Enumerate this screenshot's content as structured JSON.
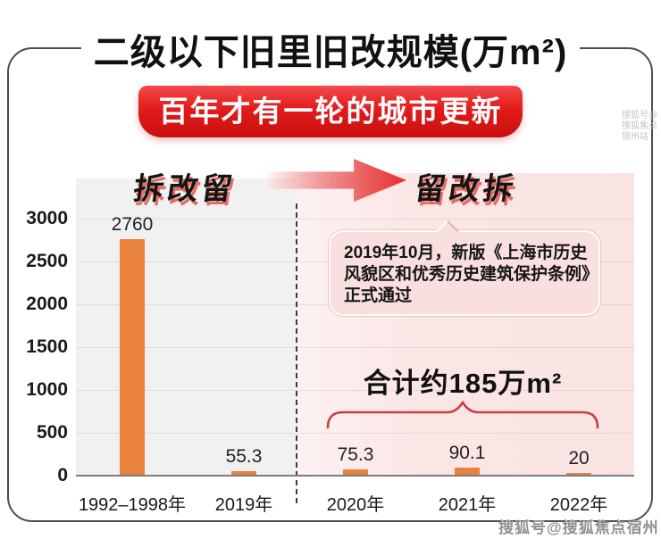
{
  "title": "二级以下旧里旧改规模(万m²)",
  "banner": {
    "text": "百年才有一轮的城市更新"
  },
  "eras": {
    "left": "拆改留",
    "right": "留改拆"
  },
  "annotation": {
    "lines": [
      "2019年10月，新版《上海市历史",
      "风貌区和优秀历史建筑保护条例》",
      "正式通过"
    ],
    "full_text": "2019年10月，新版《上海市历史风貌区和优秀历史建筑保护条例》正式通过"
  },
  "total": {
    "text": "合计约185万m²"
  },
  "watermark": {
    "text": "搜狐号@搜狐焦点宿州站"
  },
  "colors": {
    "bar": "#E9823D",
    "banner_red": "#E21B1B",
    "accent_red": "#C94040",
    "plot_gray": "#F1F1F1",
    "plot_pink": "#FBE6E6"
  },
  "chart_data": {
    "type": "bar",
    "title": "二级以下旧里旧改规模(万m²)",
    "subtitle": "百年才有一轮的城市更新",
    "categories": [
      "1992–1998年",
      "2019年",
      "2020年",
      "2021年",
      "2022年"
    ],
    "values": [
      2760,
      55.3,
      75.3,
      90.1,
      20
    ],
    "value_labels": [
      "2760",
      "55.3",
      "75.3",
      "90.1",
      "20"
    ],
    "xlabel": "",
    "ylabel": "万m²",
    "ylim": [
      0,
      3000
    ],
    "yticks": [
      0,
      500,
      1000,
      1500,
      2000,
      2500,
      3000
    ],
    "grid": true,
    "legend": "none",
    "bar_color": "#E9823D",
    "phase_labels": [
      "拆改留",
      "留改拆"
    ],
    "phase_split_after_category": "2019年",
    "annotations": [
      "2019年10月，新版《上海市历史风貌区和优秀历史建筑保护条例》正式通过",
      "合计约185万m²  (2020年–2022年)"
    ]
  }
}
